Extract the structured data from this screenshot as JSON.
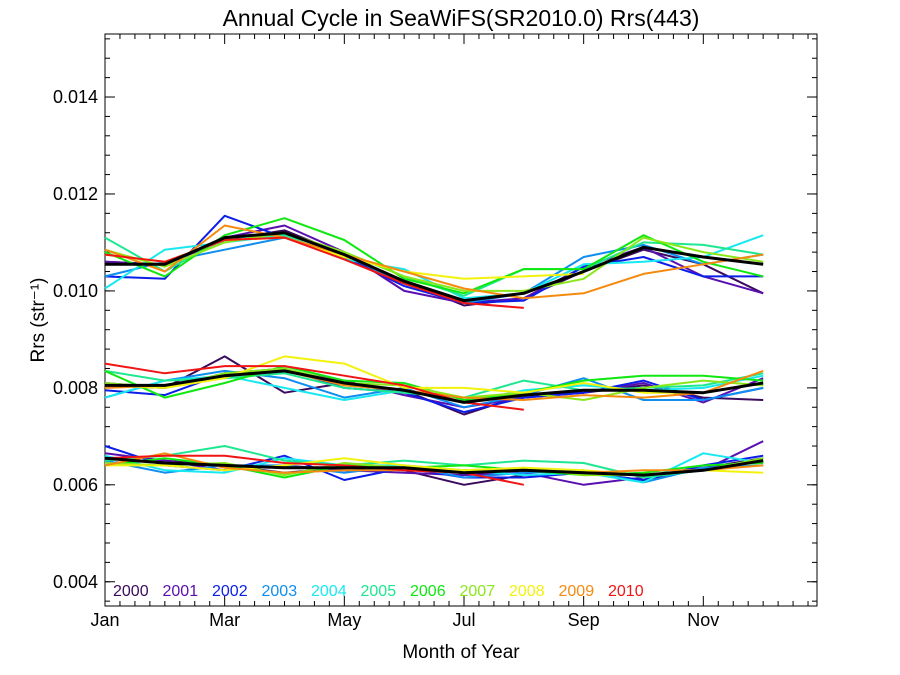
{
  "chart_data": {
    "type": "line",
    "title": "Annual Cycle in SeaWiFS(SR2010.0) Rrs(443)",
    "xlabel": "Month of Year",
    "ylabel": "Rrs (str⁻¹)",
    "xlim": [
      1,
      12.9
    ],
    "ylim": [
      0.0035,
      0.0153
    ],
    "x_ticks": [
      {
        "value": 1,
        "label": "Jan"
      },
      {
        "value": 3,
        "label": "Mar"
      },
      {
        "value": 5,
        "label": "May"
      },
      {
        "value": 7,
        "label": "Jul"
      },
      {
        "value": 9,
        "label": "Sep"
      },
      {
        "value": 11,
        "label": "Nov"
      }
    ],
    "y_ticks": [
      {
        "value": 0.004,
        "label": "0.004"
      },
      {
        "value": 0.006,
        "label": "0.006"
      },
      {
        "value": 0.008,
        "label": "0.008"
      },
      {
        "value": 0.01,
        "label": "0.010"
      },
      {
        "value": 0.012,
        "label": "0.012"
      },
      {
        "value": 0.014,
        "label": "0.014"
      }
    ],
    "x": [
      1,
      2,
      3,
      4,
      5,
      6,
      7,
      8,
      9,
      10,
      11,
      12
    ],
    "series": [
      {
        "name": "2000",
        "color": "#3a0a5e",
        "groups": [
          [
            0.0106,
            0.01055,
            0.01105,
            0.01125,
            0.01075,
            0.0102,
            0.0097,
            0.00985,
            0.0104,
            0.01085,
            0.01055,
            0.00995
          ],
          [
            0.00805,
            0.008,
            0.00865,
            0.0079,
            0.0081,
            0.00795,
            0.00745,
            0.00785,
            0.0079,
            0.00805,
            0.0078,
            0.00775
          ],
          [
            0.00645,
            0.0065,
            0.0064,
            0.00625,
            0.00635,
            0.0063,
            0.006,
            0.0062,
            0.00625,
            0.0061,
            0.00635,
            0.00655
          ]
        ]
      },
      {
        "name": "2001",
        "color": "#5a0fb0",
        "groups": [
          [
            0.0106,
            0.01055,
            0.0111,
            0.01135,
            0.0108,
            0.01,
            0.00975,
            0.00985,
            0.0105,
            0.0109,
            0.0103,
            0.00995
          ],
          [
            0.0081,
            0.008,
            0.0083,
            0.00835,
            0.00815,
            0.00785,
            0.0076,
            0.0078,
            0.0079,
            0.0081,
            0.0077,
            0.0082
          ],
          [
            0.00665,
            0.0065,
            0.0063,
            0.0064,
            0.0063,
            0.00625,
            0.0062,
            0.00625,
            0.006,
            0.00615,
            0.0063,
            0.0069
          ]
        ]
      },
      {
        "name": "2002",
        "color": "#0b1ee8",
        "groups": [
          [
            0.0103,
            0.01025,
            0.01155,
            0.0111,
            0.0107,
            0.0101,
            0.00975,
            0.0098,
            0.0105,
            0.0107,
            0.0103,
            0.0103
          ],
          [
            0.00795,
            0.00785,
            0.0083,
            0.0084,
            0.008,
            0.0079,
            0.0075,
            0.0078,
            0.0079,
            0.00815,
            0.00775,
            0.008
          ],
          [
            0.0068,
            0.0064,
            0.0063,
            0.0066,
            0.0061,
            0.00635,
            0.00615,
            0.00615,
            0.00625,
            0.0061,
            0.0064,
            0.0066
          ]
        ]
      },
      {
        "name": "2003",
        "color": "#0e8ef0",
        "groups": [
          [
            0.0103,
            0.0106,
            0.01085,
            0.0111,
            0.01075,
            0.01015,
            0.00975,
            0.00995,
            0.0107,
            0.01095,
            0.01055,
            0.01075
          ],
          [
            0.0078,
            0.00815,
            0.00835,
            0.0082,
            0.0078,
            0.008,
            0.0076,
            0.00785,
            0.0082,
            0.00775,
            0.00775,
            0.008
          ],
          [
            0.0065,
            0.00625,
            0.0064,
            0.0064,
            0.00625,
            0.0064,
            0.00615,
            0.00625,
            0.0063,
            0.00605,
            0.00635,
            0.0064
          ]
        ]
      },
      {
        "name": "2004",
        "color": "#18e8f0",
        "groups": [
          [
            0.01005,
            0.01085,
            0.011,
            0.01115,
            0.01065,
            0.01045,
            0.00985,
            0.00995,
            0.01055,
            0.0106,
            0.0107,
            0.01115
          ],
          [
            0.0078,
            0.00815,
            0.00825,
            0.008,
            0.00775,
            0.00795,
            0.0077,
            0.00795,
            0.00805,
            0.00795,
            0.008,
            0.00825
          ],
          [
            0.0066,
            0.0063,
            0.00625,
            0.00655,
            0.0064,
            0.0064,
            0.0063,
            0.0062,
            0.00625,
            0.00605,
            0.00665,
            0.00645
          ]
        ]
      },
      {
        "name": "2005",
        "color": "#1de890",
        "groups": [
          [
            0.0111,
            0.0104,
            0.0111,
            0.01115,
            0.0108,
            0.0103,
            0.0099,
            0.01045,
            0.01045,
            0.011,
            0.01095,
            0.01075
          ],
          [
            0.00835,
            0.00815,
            0.0082,
            0.0083,
            0.008,
            0.0079,
            0.0078,
            0.00815,
            0.00795,
            0.008,
            0.00805,
            0.0083
          ],
          [
            0.0065,
            0.0066,
            0.0068,
            0.0065,
            0.0064,
            0.0065,
            0.0064,
            0.0065,
            0.00645,
            0.00615,
            0.0063,
            0.0065
          ]
        ]
      },
      {
        "name": "2006",
        "color": "#10e810",
        "groups": [
          [
            0.0108,
            0.0103,
            0.01115,
            0.0115,
            0.01105,
            0.01025,
            0.00995,
            0.01045,
            0.01045,
            0.01115,
            0.0106,
            0.0103
          ],
          [
            0.00835,
            0.0078,
            0.0081,
            0.00845,
            0.00815,
            0.0081,
            0.00775,
            0.0079,
            0.00815,
            0.00825,
            0.00825,
            0.00815
          ],
          [
            0.0064,
            0.00655,
            0.0064,
            0.00615,
            0.0064,
            0.00635,
            0.0064,
            0.0063,
            0.0062,
            0.00625,
            0.0064,
            0.00645
          ]
        ]
      },
      {
        "name": "2007",
        "color": "#8ae81a",
        "groups": [
          [
            0.01085,
            0.0105,
            0.011,
            0.0112,
            0.0108,
            0.0103,
            0.01,
            0.01,
            0.01025,
            0.0111,
            0.0108,
            0.0106
          ],
          [
            0.0081,
            0.008,
            0.0083,
            0.0084,
            0.0081,
            0.00805,
            0.0078,
            0.0079,
            0.00775,
            0.008,
            0.00815,
            0.00805
          ],
          [
            0.00645,
            0.0064,
            0.00645,
            0.0062,
            0.00645,
            0.00635,
            0.0063,
            0.00635,
            0.0062,
            0.0062,
            0.0063,
            0.00655
          ]
        ]
      },
      {
        "name": "2008",
        "color": "#f2f20c",
        "groups": [
          [
            0.01075,
            0.0106,
            0.01105,
            0.0111,
            0.0107,
            0.0104,
            0.01025,
            0.0103,
            0.01035
          ],
          [
            0.00805,
            0.008,
            0.0082,
            0.00865,
            0.0085,
            0.008,
            0.008,
            0.0079,
            0.0081,
            0.0079,
            0.0079,
            0.0081
          ],
          [
            0.0064,
            0.0064,
            0.0063,
            0.0064,
            0.00655,
            0.0064,
            0.0063,
            0.00635,
            0.0063,
            0.0062,
            0.0063,
            0.00625
          ]
        ]
      },
      {
        "name": "2009",
        "color": "#f58a0e",
        "groups": [
          [
            0.01085,
            0.0104,
            0.01135,
            0.0111,
            0.01075,
            0.0104,
            0.01005,
            0.00985,
            0.00995,
            0.01035,
            0.01055,
            0.01075
          ],
          [
            0.008,
            0.00805,
            0.00825,
            0.00835,
            0.00805,
            0.00795,
            0.0078,
            0.00775,
            0.00785,
            0.0078,
            0.0079,
            0.00835
          ],
          [
            0.0064,
            0.00665,
            0.00635,
            0.00625,
            0.0063,
            0.0063,
            0.00625,
            0.0063,
            0.00625,
            0.0063,
            0.0063,
            0.0064
          ]
        ]
      },
      {
        "name": "2010",
        "color": "#f01414",
        "groups": [
          [
            0.01075,
            0.0106,
            0.01105,
            0.0111,
            0.01065,
            0.01015,
            0.00975,
            0.00965
          ],
          [
            0.0085,
            0.0083,
            0.00845,
            0.00845,
            0.00825,
            0.00805,
            0.0077,
            0.00755
          ],
          [
            0.00655,
            0.0066,
            0.0066,
            0.00645,
            0.0064,
            0.0063,
            0.00625,
            0.006
          ]
        ]
      },
      {
        "name": "",
        "color": "#000000",
        "width": 3,
        "groups": [
          [
            0.01055,
            0.01055,
            0.0111,
            0.0112,
            0.01075,
            0.0102,
            0.0098,
            0.00995,
            0.0104,
            0.0109,
            0.0107,
            0.01055
          ],
          [
            0.00805,
            0.00805,
            0.00825,
            0.00835,
            0.0081,
            0.00795,
            0.0077,
            0.00785,
            0.00795,
            0.00795,
            0.0079,
            0.0081
          ],
          [
            0.00655,
            0.00645,
            0.0064,
            0.00635,
            0.00635,
            0.00635,
            0.00625,
            0.0063,
            0.00625,
            0.0062,
            0.0063,
            0.0065
          ]
        ]
      }
    ],
    "legend": [
      "2000",
      "2001",
      "2002",
      "2003",
      "2004",
      "2005",
      "2006",
      "2007",
      "2008",
      "2009",
      "2010"
    ],
    "legend_position": "bottom-left inside",
    "grid": false
  }
}
